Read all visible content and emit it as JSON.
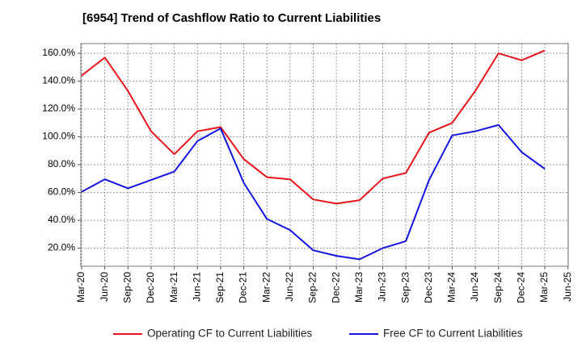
{
  "title": "[6954]  Trend of Cashflow Ratio to Current Liabilities",
  "chart_data": {
    "type": "line",
    "title": "[6954]  Trend of Cashflow Ratio to Current Liabilities",
    "xlabel": "",
    "ylabel": "",
    "x_tick_labels": [
      "Mar-20",
      "Jun-20",
      "Sep-20",
      "Dec-20",
      "Mar-21",
      "Jun-21",
      "Sep-21",
      "Dec-21",
      "Mar-22",
      "Jun-22",
      "Sep-22",
      "Dec-22",
      "Mar-23",
      "Jun-23",
      "Sep-23",
      "Dec-23",
      "Mar-24",
      "Jun-24",
      "Sep-24",
      "Dec-24",
      "Mar-25",
      "Jun-25"
    ],
    "y_ticks": [
      20,
      40,
      60,
      80,
      100,
      120,
      140,
      160
    ],
    "y_tick_labels": [
      "20.0%",
      "40.0%",
      "60.0%",
      "80.0%",
      "100.0%",
      "120.0%",
      "140.0%",
      "160.0%"
    ],
    "ylim": [
      7,
      167
    ],
    "grid": true,
    "legend_position": "bottom",
    "categories": [
      "Mar-20",
      "Jun-20",
      "Sep-20",
      "Dec-20",
      "Mar-21",
      "Jun-21",
      "Sep-21",
      "Dec-21",
      "Mar-22",
      "Jun-22",
      "Sep-22",
      "Dec-22",
      "Mar-23",
      "Jun-23",
      "Sep-23",
      "Dec-23",
      "Mar-24",
      "Jun-24",
      "Sep-24",
      "Dec-24",
      "Mar-25"
    ],
    "series": [
      {
        "name": "Operating CF to Current Liabilities",
        "color": "#e8141c",
        "values": [
          144,
          157,
          133,
          104,
          87.5,
          104,
          107,
          84,
          71,
          69.5,
          55,
          52,
          54.5,
          70,
          74,
          103,
          110,
          133,
          160,
          155,
          162
        ]
      },
      {
        "name": "Free CF to Current Liabilities",
        "color": "#1414e0",
        "values": [
          60.5,
          69.5,
          63,
          69,
          75,
          97,
          106,
          67,
          41,
          33,
          18.5,
          14.5,
          12,
          20,
          25,
          69,
          101,
          104,
          108.5,
          89,
          77
        ]
      }
    ]
  }
}
